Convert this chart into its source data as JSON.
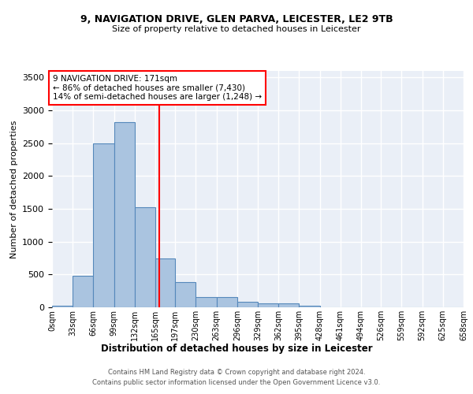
{
  "title_line1": "9, NAVIGATION DRIVE, GLEN PARVA, LEICESTER, LE2 9TB",
  "title_line2": "Size of property relative to detached houses in Leicester",
  "xlabel": "Distribution of detached houses by size in Leicester",
  "ylabel": "Number of detached properties",
  "bar_values": [
    30,
    480,
    2500,
    2820,
    1520,
    740,
    390,
    155,
    155,
    80,
    55,
    55,
    30,
    5,
    5,
    5,
    5,
    5,
    5,
    5
  ],
  "bin_edges": [
    0,
    33,
    66,
    99,
    132,
    165,
    197,
    230,
    263,
    296,
    329,
    362,
    395,
    428,
    461,
    494,
    526,
    559,
    592,
    625,
    658
  ],
  "tick_labels": [
    "0sqm",
    "33sqm",
    "66sqm",
    "99sqm",
    "132sqm",
    "165sqm",
    "197sqm",
    "230sqm",
    "263sqm",
    "296sqm",
    "329sqm",
    "362sqm",
    "395sqm",
    "428sqm",
    "461sqm",
    "494sqm",
    "526sqm",
    "559sqm",
    "592sqm",
    "625sqm",
    "658sqm"
  ],
  "bar_color": "#aac4e0",
  "bar_edge_color": "#5588bb",
  "vline_x": 171,
  "vline_color": "red",
  "annotation_box_text": "9 NAVIGATION DRIVE: 171sqm\n← 86% of detached houses are smaller (7,430)\n14% of semi-detached houses are larger (1,248) →",
  "ylim": [
    0,
    3600
  ],
  "yticks": [
    0,
    500,
    1000,
    1500,
    2000,
    2500,
    3000,
    3500
  ],
  "background_color": "#eaeff7",
  "grid_color": "#ffffff",
  "footer_line1": "Contains HM Land Registry data © Crown copyright and database right 2024.",
  "footer_line2": "Contains public sector information licensed under the Open Government Licence v3.0."
}
